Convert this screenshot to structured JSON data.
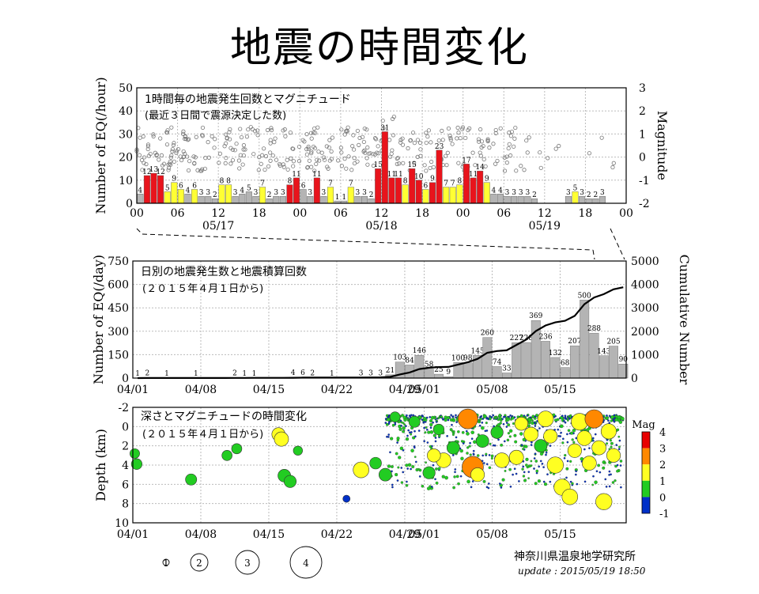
{
  "title": "地震の時間変化",
  "credit": {
    "org": "神奈川県温泉地学研究所",
    "update": "update : 2015/05/19 18:50"
  },
  "size_legend": [
    "1",
    "2",
    "3",
    "4"
  ],
  "chart_data": [
    {
      "type": "bar",
      "title": "1時間毎の地震発生回数とマグニチュード",
      "subtitle": "(最近３日間で震源決定した数)",
      "ylabel": "Number of EQ(/hour)",
      "y2label": "Magnitude",
      "ylim": [
        0,
        50
      ],
      "yticks": [
        0,
        10,
        20,
        30,
        40,
        50
      ],
      "y2lim": [
        -2,
        3
      ],
      "y2ticks": [
        -2,
        -1,
        0,
        1,
        2,
        3
      ],
      "xlim": [
        0,
        72
      ],
      "xticks": [
        {
          "h": 0,
          "label": "00"
        },
        {
          "h": 6,
          "label": "06"
        },
        {
          "h": 12,
          "label": "12"
        },
        {
          "h": 18,
          "label": "18"
        },
        {
          "h": 24,
          "label": "00"
        },
        {
          "h": 30,
          "label": "06"
        },
        {
          "h": 36,
          "label": "12"
        },
        {
          "h": 42,
          "label": "18"
        },
        {
          "h": 48,
          "label": "00"
        },
        {
          "h": 54,
          "label": "06"
        },
        {
          "h": 60,
          "label": "12"
        },
        {
          "h": 66,
          "label": "18"
        },
        {
          "h": 72,
          "label": "00"
        }
      ],
      "date_labels": [
        {
          "h": 12,
          "label": "05/17"
        },
        {
          "h": 36,
          "label": "05/18"
        },
        {
          "h": 60,
          "label": "05/19"
        }
      ],
      "colors": {
        "red": "#e8141c",
        "yellow": "#ffff33",
        "gray": "#b4b4b4"
      },
      "values": [
        4,
        12,
        13,
        12,
        5,
        9,
        6,
        4,
        6,
        3,
        3,
        2,
        8,
        8,
        3,
        4,
        5,
        3,
        7,
        2,
        3,
        3,
        8,
        11,
        6,
        3,
        11,
        3,
        7,
        1,
        1,
        7,
        3,
        3,
        2,
        15,
        31,
        11,
        11,
        8,
        15,
        10,
        6,
        9,
        23,
        7,
        7,
        8,
        17,
        11,
        14,
        9,
        4,
        4,
        3,
        3,
        3,
        3,
        2,
        0,
        0,
        0,
        0,
        3,
        5,
        3,
        2,
        2,
        3,
        0,
        0,
        0
      ],
      "bar_colors": [
        "g",
        "r",
        "r",
        "r",
        "y",
        "y",
        "y",
        "g",
        "y",
        "g",
        "g",
        "g",
        "y",
        "y",
        "g",
        "g",
        "g",
        "g",
        "y",
        "g",
        "g",
        "g",
        "r",
        "r",
        "g",
        "g",
        "r",
        "g",
        "y",
        "g",
        "g",
        "y",
        "g",
        "g",
        "g",
        "r",
        "r",
        "r",
        "r",
        "y",
        "r",
        "r",
        "y",
        "r",
        "r",
        "y",
        "y",
        "y",
        "r",
        "r",
        "r",
        "y",
        "g",
        "g",
        "g",
        "g",
        "g",
        "g",
        "g",
        "g",
        "g",
        "g",
        "g",
        "g",
        "y",
        "g",
        "g",
        "g",
        "g",
        "g",
        "g",
        "g"
      ]
    },
    {
      "type": "bar",
      "title": "日別の地震発生数と地震積算回数",
      "subtitle": "(２０１５年４月１日から)",
      "ylabel": "Number of EQ(/day)",
      "y2label": "Cumulative Number",
      "ylim": [
        0,
        750
      ],
      "yticks": [
        0,
        150,
        300,
        450,
        600,
        750
      ],
      "y2lim": [
        0,
        5000
      ],
      "y2ticks": [
        0,
        1000,
        2000,
        3000,
        4000,
        5000
      ],
      "xlim": [
        0,
        50
      ],
      "xticks": [
        {
          "d": 0,
          "label": "04/01"
        },
        {
          "d": 7,
          "label": "04/08"
        },
        {
          "d": 14,
          "label": "04/15"
        },
        {
          "d": 21,
          "label": "04/22"
        },
        {
          "d": 28,
          "label": "04/29"
        },
        {
          "d": 30,
          "label": "05/01"
        },
        {
          "d": 37,
          "label": "05/08"
        },
        {
          "d": 44,
          "label": "05/15"
        }
      ],
      "values": [
        1,
        2,
        0,
        1,
        0,
        0,
        1,
        0,
        0,
        0,
        2,
        1,
        1,
        0,
        0,
        0,
        4,
        6,
        2,
        0,
        1,
        0,
        0,
        3,
        3,
        3,
        21,
        103,
        84,
        146,
        58,
        25,
        9,
        100,
        98,
        145,
        260,
        74,
        33,
        227,
        228,
        369,
        236,
        132,
        68,
        207,
        500,
        288,
        143,
        205,
        90
      ],
      "labels": [
        "1",
        "2",
        "",
        "1",
        "",
        "",
        "1",
        "",
        "",
        "",
        "2",
        "1",
        "1",
        "",
        "",
        "",
        "4",
        "6",
        "2",
        "",
        "1",
        "",
        "",
        "3",
        "3",
        "3",
        "21",
        "103",
        "84",
        "146",
        "58",
        "25",
        "9",
        "100",
        "98",
        "145",
        "260",
        "74",
        "33",
        "227",
        "228",
        "369",
        "236",
        "132",
        "68",
        "207",
        "500",
        "288",
        "143",
        "205",
        "90"
      ],
      "cumulative": [
        1,
        3,
        3,
        4,
        4,
        4,
        5,
        5,
        5,
        5,
        7,
        8,
        9,
        9,
        9,
        9,
        13,
        19,
        21,
        21,
        22,
        22,
        22,
        25,
        28,
        31,
        52,
        155,
        239,
        385,
        443,
        468,
        477,
        577,
        675,
        820,
        1080,
        1154,
        1187,
        1414,
        1642,
        2011,
        2247,
        2379,
        2447,
        2654,
        3154,
        3442,
        3585,
        3790,
        3880
      ]
    },
    {
      "type": "scatter",
      "title": "深さとマグニチュードの時間変化",
      "subtitle": "(２０１５年４月１日から)",
      "ylabel": "Depth (km)",
      "ylim": [
        -2,
        10
      ],
      "yticks": [
        -2,
        0,
        2,
        4,
        6,
        8,
        10
      ],
      "xlim": [
        0,
        50
      ],
      "xticks": [
        {
          "d": 0,
          "label": "04/01"
        },
        {
          "d": 7,
          "label": "04/08"
        },
        {
          "d": 14,
          "label": "04/15"
        },
        {
          "d": 21,
          "label": "04/22"
        },
        {
          "d": 28,
          "label": "04/29"
        },
        {
          "d": 30,
          "label": "05/01"
        },
        {
          "d": 37,
          "label": "05/08"
        },
        {
          "d": 44,
          "label": "05/15"
        }
      ],
      "colorbar": {
        "label": "Mag",
        "ticks": [
          -1,
          0,
          1,
          2,
          3,
          4
        ],
        "colors": [
          "#0030c8",
          "#22cc22",
          "#ffff22",
          "#ff8800",
          "#e80000"
        ]
      },
      "points": [
        {
          "d": 0.2,
          "depth": 2.8,
          "mag": 0.3
        },
        {
          "d": 0.4,
          "depth": 3.9,
          "mag": 0.5
        },
        {
          "d": 6.0,
          "depth": 5.5,
          "mag": 0.6
        },
        {
          "d": 9.7,
          "depth": 3.0,
          "mag": 0.4
        },
        {
          "d": 10.7,
          "depth": 2.3,
          "mag": 0.4
        },
        {
          "d": 15.0,
          "depth": 0.8,
          "mag": 1.0
        },
        {
          "d": 15.3,
          "depth": 1.3,
          "mag": 1.2
        },
        {
          "d": 15.6,
          "depth": 5.1,
          "mag": 0.9
        },
        {
          "d": 16.2,
          "depth": 5.7,
          "mag": 0.8
        },
        {
          "d": 17.0,
          "depth": 2.5,
          "mag": 0.2
        },
        {
          "d": 22.0,
          "depth": 7.5,
          "mag": -0.2
        },
        {
          "d": 23.5,
          "depth": 4.5,
          "mag": 1.5
        },
        {
          "d": 25.0,
          "depth": 3.8,
          "mag": 0.7
        },
        {
          "d": 26.0,
          "depth": 5.0,
          "mag": 0.9
        },
        {
          "d": 27.0,
          "depth": -1.0,
          "mag": 0.4
        },
        {
          "d": 30.5,
          "depth": 4.8,
          "mag": 0.8
        },
        {
          "d": 32.0,
          "depth": 3.5,
          "mag": 1.3
        },
        {
          "d": 34.5,
          "depth": -0.8,
          "mag": 2.3
        },
        {
          "d": 35.0,
          "depth": 4.2,
          "mag": 2.6
        },
        {
          "d": 35.5,
          "depth": 5.0,
          "mag": 1.1
        },
        {
          "d": 38.0,
          "depth": 3.5,
          "mag": 1.3
        },
        {
          "d": 39.5,
          "depth": 3.2,
          "mag": 1.2
        },
        {
          "d": 42.5,
          "depth": -0.8,
          "mag": 1.5
        },
        {
          "d": 43.5,
          "depth": 4.0,
          "mag": 1.6
        },
        {
          "d": 44.2,
          "depth": 6.3,
          "mag": 1.6
        },
        {
          "d": 45.0,
          "depth": 7.3,
          "mag": 1.5
        },
        {
          "d": 46.0,
          "depth": -0.5,
          "mag": 1.7
        },
        {
          "d": 47.5,
          "depth": -0.8,
          "mag": 2.0
        },
        {
          "d": 48.0,
          "depth": 2.2,
          "mag": 1.2
        },
        {
          "d": 48.5,
          "depth": 7.8,
          "mag": 1.6
        },
        {
          "d": 40.0,
          "depth": -0.3,
          "mag": 1.0
        },
        {
          "d": 41.0,
          "depth": 0.8,
          "mag": 1.2
        },
        {
          "d": 42.0,
          "depth": 2.0,
          "mag": 0.9
        },
        {
          "d": 43.0,
          "depth": 1.0,
          "mag": 1.1
        },
        {
          "d": 45.5,
          "depth": 2.5,
          "mag": 1.1
        },
        {
          "d": 46.5,
          "depth": 1.2,
          "mag": 1.3
        },
        {
          "d": 47.0,
          "depth": 3.8,
          "mag": 1.2
        },
        {
          "d": 49.0,
          "depth": 0.5,
          "mag": 1.4
        },
        {
          "d": 49.5,
          "depth": 3.0,
          "mag": 1.1
        },
        {
          "d": 36.0,
          "depth": 1.5,
          "mag": 0.9
        },
        {
          "d": 37.5,
          "depth": 0.6,
          "mag": 0.8
        },
        {
          "d": 33.0,
          "depth": 2.2,
          "mag": 0.9
        },
        {
          "d": 31.0,
          "depth": 3.0,
          "mag": 1.0
        },
        {
          "d": 29.0,
          "depth": -0.5,
          "mag": 0.6
        },
        {
          "d": 31.5,
          "depth": 0.3,
          "mag": 0.5
        }
      ]
    }
  ]
}
